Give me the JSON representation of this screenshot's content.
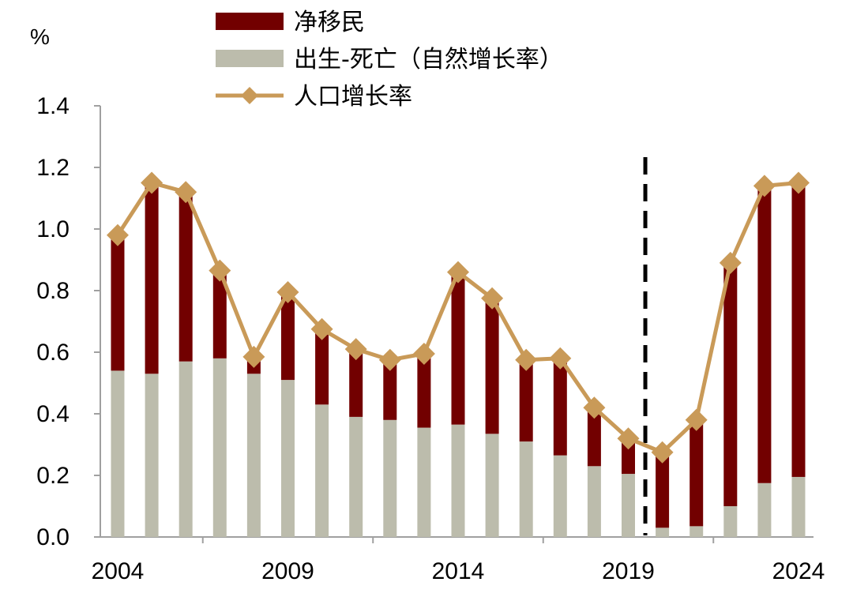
{
  "chart_data": {
    "type": "bar",
    "stacked": true,
    "unit": "%",
    "x": [
      2004,
      2005,
      2006,
      2007,
      2008,
      2009,
      2010,
      2011,
      2012,
      2013,
      2014,
      2015,
      2016,
      2017,
      2018,
      2019,
      2020,
      2021,
      2022,
      2023,
      2024
    ],
    "x_tick_labels": [
      "2004",
      "2009",
      "2014",
      "2019",
      "2024"
    ],
    "y_tick_labels": [
      "0.0",
      "0.2",
      "0.4",
      "0.6",
      "0.8",
      "1.0",
      "1.2",
      "1.4"
    ],
    "ylim": [
      0,
      1.4
    ],
    "series": [
      {
        "name": "出生-死亡（自然增长率）",
        "kind": "bar",
        "color": "#bcbcac",
        "values": [
          0.54,
          0.53,
          0.57,
          0.58,
          0.53,
          0.51,
          0.43,
          0.39,
          0.38,
          0.355,
          0.365,
          0.335,
          0.31,
          0.265,
          0.23,
          0.205,
          0.03,
          0.035,
          0.1,
          0.175,
          0.195
        ]
      },
      {
        "name": "净移民",
        "kind": "bar",
        "color": "#720000",
        "values": [
          0.44,
          0.61,
          0.55,
          0.285,
          0.055,
          0.285,
          0.245,
          0.22,
          0.195,
          0.24,
          0.495,
          0.44,
          0.265,
          0.315,
          0.19,
          0.115,
          0.245,
          0.345,
          0.79,
          0.965,
          0.955
        ]
      },
      {
        "name": "人口增长率",
        "kind": "line",
        "color": "#c99a58",
        "values": [
          0.98,
          1.15,
          1.12,
          0.865,
          0.585,
          0.795,
          0.675,
          0.61,
          0.575,
          0.595,
          0.86,
          0.775,
          0.575,
          0.58,
          0.42,
          0.32,
          0.275,
          0.38,
          0.89,
          1.14,
          1.15
        ]
      }
    ],
    "legend": [
      {
        "label": "净移民",
        "marker": "box",
        "color": "#720000"
      },
      {
        "label": "出生-死亡（自然增长率）",
        "marker": "box",
        "color": "#bcbcac"
      },
      {
        "label": "人口增长率",
        "marker": "line-diamond",
        "color": "#c99a58"
      }
    ],
    "legend_position": "top",
    "divider_after_year": 2019,
    "grid": false
  }
}
